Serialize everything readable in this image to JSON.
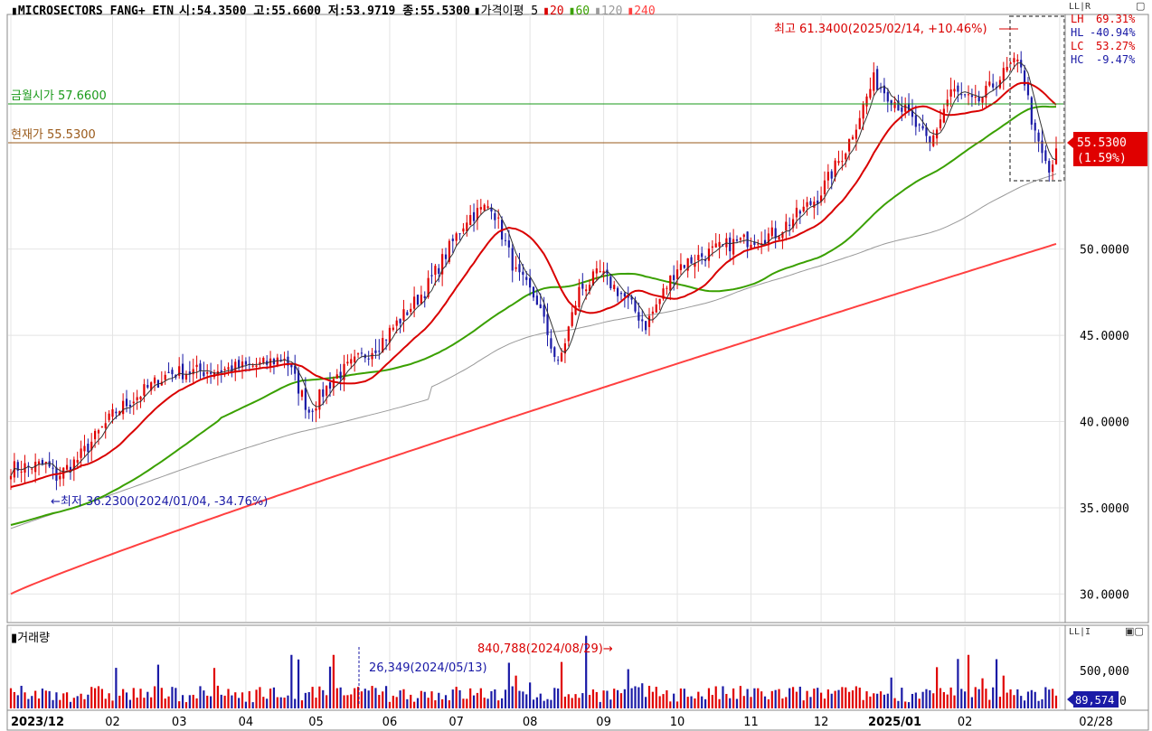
{
  "header": {
    "marker": "▮",
    "title": "MICROSECTORS FANG+ ETN",
    "ohlc": "시:54.3500 고:55.6600 저:53.9719 종:55.5300",
    "ma_label": "▮가격이평 5",
    "ma_items": [
      {
        "label": "20",
        "color": "#d90000"
      },
      {
        "label": "60",
        "color": "#3aa000"
      },
      {
        "label": "120",
        "color": "#999999"
      },
      {
        "label": "240",
        "color": "#ff4040"
      }
    ]
  },
  "toolbar": {
    "price_panel_buttons": "LL|R",
    "window_icon": "▢",
    "volume_panel_buttons": "LL|I",
    "volume_window_icon": "▣▢"
  },
  "stats_box": [
    {
      "label": "LH",
      "value": "69.31%",
      "color": "#d90000"
    },
    {
      "label": "HL",
      "value": "-40.94%",
      "color": "#1a1aa6"
    },
    {
      "label": "LC",
      "value": "53.27%",
      "color": "#d90000"
    },
    {
      "label": "HC",
      "value": "-9.47%",
      "color": "#1a1aa6"
    }
  ],
  "reference_lines": {
    "week_open": {
      "label": "금월시가 57.6600",
      "value": 57.66,
      "color": "#1a9a1a"
    },
    "current": {
      "label": "현재가 55.5300",
      "value": 55.53,
      "color": "#9a5a1a"
    }
  },
  "annotations": {
    "high": "최고 61.3400(2025/02/14, +10.46%)",
    "low": "←최저 36.2300(2024/01/04, -34.76%)",
    "vol_high": "840,788(2024/08/29)→",
    "vol_low": "26,349(2024/05/13)"
  },
  "price_tag": {
    "price": "55.5300",
    "change": "(1.59%)"
  },
  "volume_tag": "89,574",
  "volume_title": "▮거래량",
  "chart_data": {
    "type": "candlestick",
    "ylim": [
      28.5,
      63.5
    ],
    "yticks": [
      {
        "label": "50.0000",
        "value": 50
      },
      {
        "label": "45.0000",
        "value": 45
      },
      {
        "label": "40.0000",
        "value": 40
      },
      {
        "label": "35.0000",
        "value": 35
      },
      {
        "label": "30.0000",
        "value": 30
      }
    ],
    "xticks": [
      {
        "label": "2023/12",
        "i": 0
      },
      {
        "label": "02",
        "i": 29
      },
      {
        "label": "03",
        "i": 48
      },
      {
        "label": "04",
        "i": 67
      },
      {
        "label": "05",
        "i": 87
      },
      {
        "label": "06",
        "i": 108
      },
      {
        "label": "07",
        "i": 127
      },
      {
        "label": "08",
        "i": 148
      },
      {
        "label": "09",
        "i": 169
      },
      {
        "label": "10",
        "i": 190
      },
      {
        "label": "11",
        "i": 211
      },
      {
        "label": "12",
        "i": 231
      },
      {
        "label": "2025/01",
        "i": 252
      },
      {
        "label": "02",
        "i": 272
      },
      {
        "label": "02/28",
        "i": 299
      }
    ],
    "n_bars": 299,
    "anchors": [
      [
        0,
        37.3
      ],
      [
        10,
        37.5
      ],
      [
        13,
        36.8
      ],
      [
        19,
        37.8
      ],
      [
        30,
        40.6
      ],
      [
        45,
        42.8
      ],
      [
        60,
        43.0
      ],
      [
        72,
        43.3
      ],
      [
        78,
        43.8
      ],
      [
        85,
        40.6
      ],
      [
        92,
        42.5
      ],
      [
        105,
        44.5
      ],
      [
        118,
        47.6
      ],
      [
        130,
        51.8
      ],
      [
        137,
        52.6
      ],
      [
        144,
        48.6
      ],
      [
        150,
        47.0
      ],
      [
        156,
        43.2
      ],
      [
        162,
        47.6
      ],
      [
        168,
        48.6
      ],
      [
        175,
        47.2
      ],
      [
        181,
        45.6
      ],
      [
        190,
        49.0
      ],
      [
        205,
        50.3
      ],
      [
        218,
        50.9
      ],
      [
        230,
        53.0
      ],
      [
        238,
        55.8
      ],
      [
        246,
        59.8
      ],
      [
        255,
        58.0
      ],
      [
        262,
        56.0
      ],
      [
        268,
        59.2
      ],
      [
        275,
        58.4
      ],
      [
        285,
        60.6
      ],
      [
        288,
        60.8
      ],
      [
        292,
        56.5
      ],
      [
        296,
        54.4
      ],
      [
        298,
        55.5
      ]
    ],
    "ma_lines": [
      {
        "period": 20,
        "color": "#d90000",
        "start": 36.2
      },
      {
        "period": 60,
        "color": "#3aa000",
        "start": 34.0
      },
      {
        "period": 120,
        "color": "#999999",
        "start": 33.8
      },
      {
        "period": 240,
        "color": "#ff4040",
        "start": 30.0,
        "end": 50.3
      }
    ],
    "volume": {
      "yticks": [
        {
          "label": "500,000",
          "value": 500000
        }
      ],
      "ymax": 900000,
      "spikes": [
        [
          144,
          380000
        ],
        [
          164,
          840788
        ],
        [
          148,
          300000
        ],
        [
          80,
          620000
        ],
        [
          92,
          620000
        ],
        [
          30,
          470000
        ],
        [
          273,
          620000
        ],
        [
          281,
          570000
        ],
        [
          283,
          380000
        ]
      ],
      "base": 120000
    }
  }
}
